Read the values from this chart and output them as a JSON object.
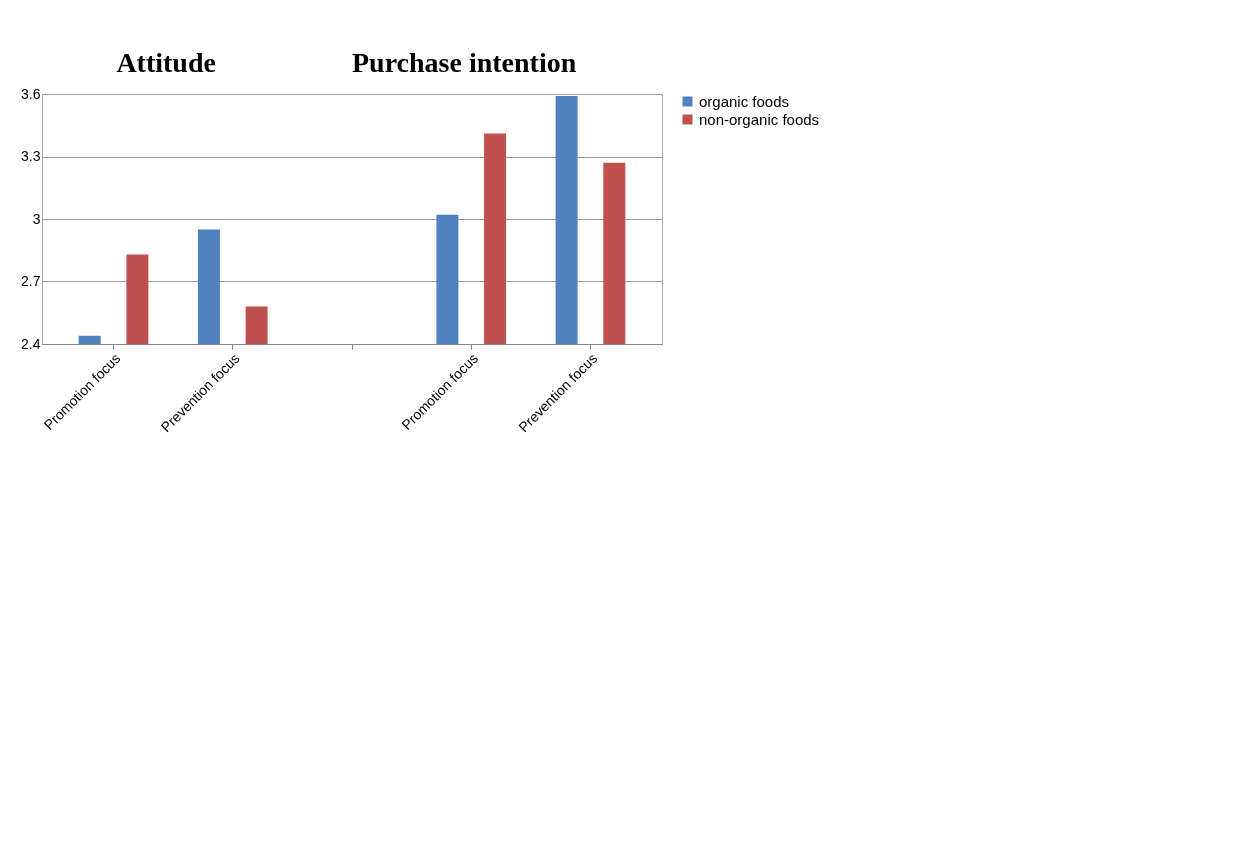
{
  "chart_data": {
    "type": "bar",
    "annotations": [
      "Attitude",
      "Purchase intention"
    ],
    "categories": [
      "Promotion focus",
      "Prevention focus",
      null,
      "Promotion focus",
      "Prevention focus"
    ],
    "series": [
      {
        "name": "organic foods",
        "color": "#4f81bd",
        "values": [
          2.44,
          2.95,
          null,
          3.02,
          3.59
        ]
      },
      {
        "name": "non-organic foods",
        "color": "#c0504d",
        "values": [
          2.83,
          2.58,
          null,
          3.41,
          3.27
        ]
      }
    ],
    "ylim": [
      2.4,
      3.6
    ],
    "yticks": [
      2.4,
      2.7,
      3,
      3.3,
      3.6
    ],
    "grid": "y",
    "legend": "right"
  }
}
